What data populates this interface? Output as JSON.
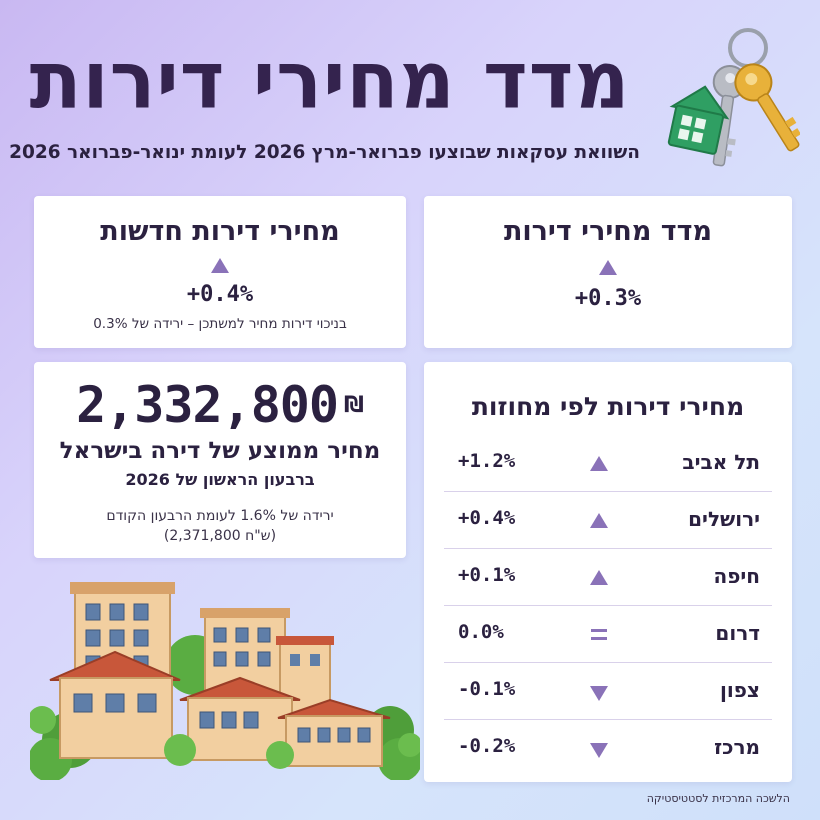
{
  "header": {
    "title": "מדד מחירי דירות",
    "subtitle": "השוואת עסקאות שבוצעו פברואר-מרץ 2026 לעומת ינואר-פברואר 2026"
  },
  "index_card": {
    "title": "מדד מחירי דירות",
    "change": "+0.3%",
    "direction": "up"
  },
  "new_card": {
    "title": "מחירי דירות חדשות",
    "change": "+0.4%",
    "direction": "up",
    "note": "בניכוי דירות מחיר למשתכן – ירידה של 0.3%"
  },
  "price_card": {
    "price": "2,332,800",
    "currency": "₪",
    "label": "מחיר ממוצע של דירה בישראל",
    "period": "ברבעון הראשון של 2026",
    "note_line1": "ירידה של 1.6% לעומת הרבעון הקודם",
    "note_line2": "(2,371,800 ש\"ח)"
  },
  "districts_card": {
    "title": "מחירי דירות לפי מחוזות",
    "rows": [
      {
        "name": "תל אביב",
        "change": "+1.2%",
        "direction": "up"
      },
      {
        "name": "ירושלים",
        "change": "+0.4%",
        "direction": "up"
      },
      {
        "name": "חיפה",
        "change": "+0.1%",
        "direction": "up"
      },
      {
        "name": "דרום",
        "change": "0.0%",
        "direction": "equal"
      },
      {
        "name": "צפון",
        "change": "-0.1%",
        "direction": "down"
      },
      {
        "name": "מרכז",
        "change": "-0.2%",
        "direction": "down"
      }
    ]
  },
  "source": "הלשכה המרכזית לסטטיסטיקה",
  "colors": {
    "accent": "#8a72b8",
    "title": "#34234e",
    "key_gold": "#e8b13a",
    "key_silver": "#b9bcc4",
    "keychain_green": "#2f9f63",
    "roof": "#c8573a",
    "wall": "#f2cfa0",
    "tree": "#4f9e3a"
  },
  "icons": {
    "keys": "keys-icon",
    "buildings": "buildings-illustration"
  }
}
